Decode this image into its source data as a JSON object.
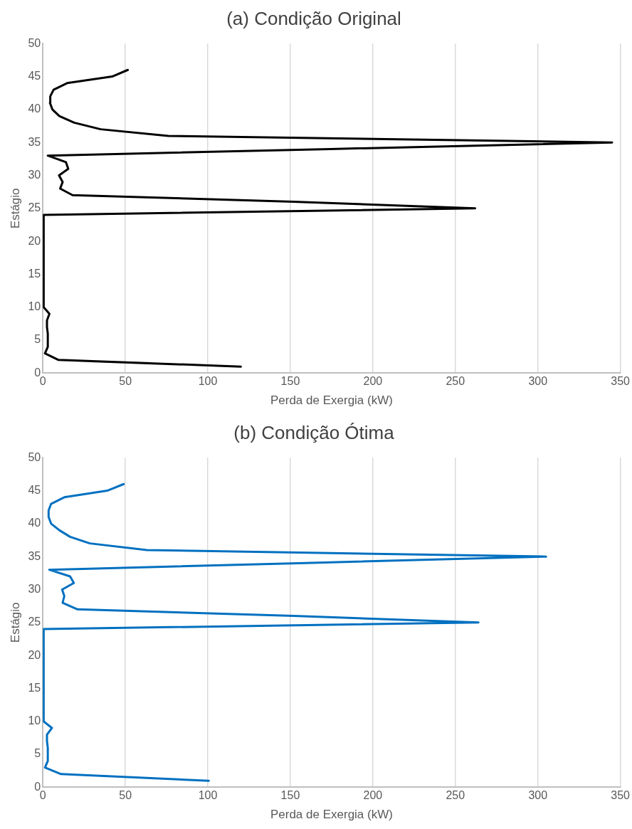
{
  "chart_data": [
    {
      "type": "line",
      "title": "(a) Condição Original",
      "xlabel": "Perda de Exergia (kW)",
      "ylabel": "Estágio",
      "xlim": [
        0,
        350
      ],
      "xticks": [
        0,
        50,
        100,
        150,
        200,
        250,
        300,
        350
      ],
      "ylim": [
        0,
        50
      ],
      "yticks": [
        0,
        5,
        10,
        15,
        20,
        25,
        30,
        35,
        40,
        45,
        50
      ],
      "grid": "x",
      "legend": false,
      "marker": "none",
      "line_style": "solid",
      "series": [
        {
          "color": "#000000",
          "x": [
            120,
            9.5,
            1.3,
            3,
            3,
            3,
            2.5,
            2.5,
            4,
            0.5,
            0.5,
            0.5,
            0.5,
            0.5,
            0.5,
            0.5,
            0.5,
            0.5,
            0.5,
            0.5,
            0.5,
            0.5,
            0.5,
            0.5,
            262,
            152,
            18,
            10.5,
            12,
            9.8,
            15.4,
            14,
            3,
            174,
            345,
            76,
            35,
            19,
            10,
            5.8,
            4.3,
            4.5,
            6.5,
            14.7,
            42,
            51.5
          ],
          "values": [
            1,
            2,
            3,
            4,
            5,
            6,
            7,
            8,
            9,
            10,
            11,
            12,
            13,
            14,
            15,
            16,
            17,
            18,
            19,
            20,
            21,
            22,
            23,
            24,
            25,
            26,
            27,
            28,
            29,
            30,
            31,
            32,
            33,
            34,
            35,
            36,
            37,
            38,
            39,
            40,
            41,
            42,
            43,
            44,
            45,
            46
          ]
        }
      ]
    },
    {
      "type": "line",
      "title": "(b) Condição Ótima",
      "xlabel": "Perda de Exergia (kW)",
      "ylabel": "Estágio",
      "xlim": [
        0,
        350
      ],
      "xticks": [
        0,
        50,
        100,
        150,
        200,
        250,
        300,
        350
      ],
      "ylim": [
        0,
        50
      ],
      "yticks": [
        0,
        5,
        10,
        15,
        20,
        25,
        30,
        35,
        40,
        45,
        50
      ],
      "grid": "x",
      "legend": false,
      "marker": "none",
      "line_style": "solid",
      "series": [
        {
          "color": "#0070c0",
          "x": [
            100.6,
            11,
            1.3,
            3,
            3,
            3,
            2.5,
            2.5,
            5.5,
            0.5,
            0.5,
            0.5,
            0.5,
            0.5,
            0.5,
            0.5,
            0.5,
            0.5,
            0.5,
            0.5,
            0.5,
            0.5,
            0.5,
            0.5,
            264,
            152,
            21,
            12,
            13,
            11.7,
            18.8,
            16.5,
            3.9,
            155,
            305,
            63,
            28.5,
            16.5,
            10,
            5,
            3.5,
            3.5,
            5,
            13,
            39,
            49
          ],
          "values": [
            1,
            2,
            3,
            4,
            5,
            6,
            7,
            8,
            9,
            10,
            11,
            12,
            13,
            14,
            15,
            16,
            17,
            18,
            19,
            20,
            21,
            22,
            23,
            24,
            25,
            26,
            27,
            28,
            29,
            30,
            31,
            32,
            33,
            34,
            35,
            36,
            37,
            38,
            39,
            40,
            41,
            42,
            43,
            44,
            45,
            46
          ]
        }
      ]
    }
  ]
}
